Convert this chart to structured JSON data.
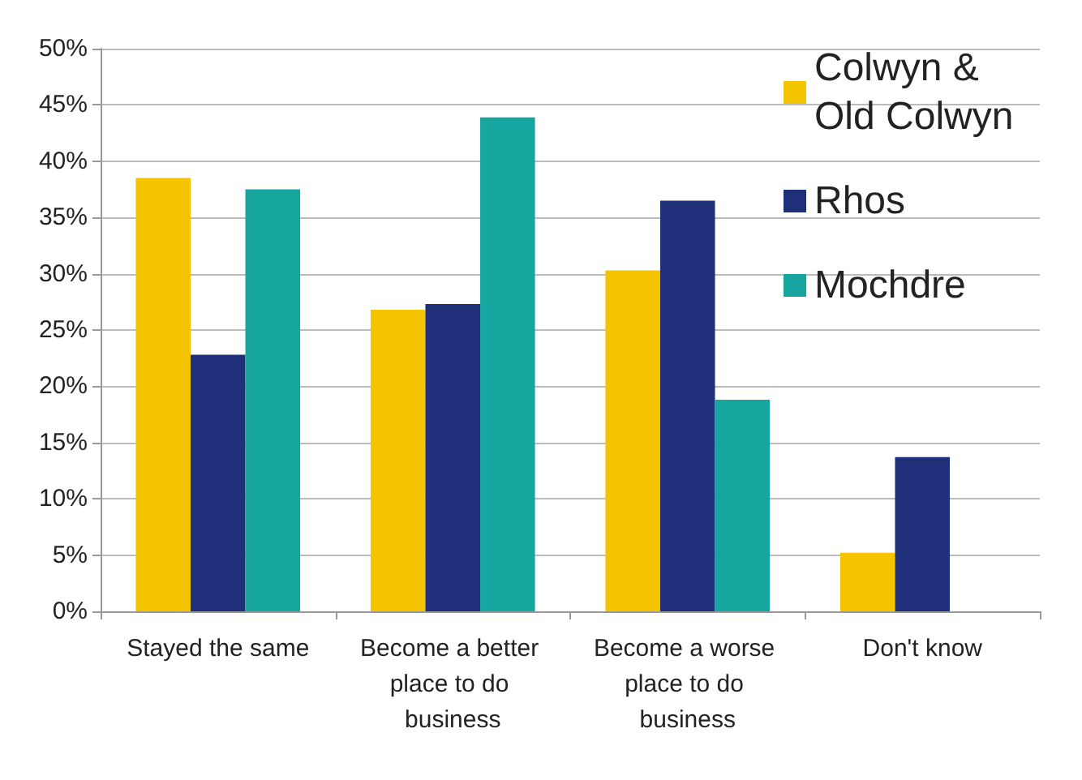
{
  "chart_data": {
    "type": "bar",
    "categories": [
      "Stayed the same",
      "Become a better place to do business",
      "Become a worse place to do business",
      "Don't know"
    ],
    "series": [
      {
        "name": "Colwyn & Old Colwyn",
        "color": "#f5c400",
        "values": [
          38.5,
          26.8,
          30.3,
          5.2
        ]
      },
      {
        "name": "Rhos",
        "color": "#1f2f7a",
        "values": [
          22.8,
          27.3,
          36.5,
          13.7
        ]
      },
      {
        "name": "Mochdre",
        "color": "#17a5a0",
        "values": [
          37.5,
          43.9,
          18.8,
          null
        ]
      }
    ],
    "ylim": [
      0,
      50
    ],
    "yticks": [
      {
        "value": 0,
        "label": "0%"
      },
      {
        "value": 5,
        "label": "5%"
      },
      {
        "value": 10,
        "label": "10%"
      },
      {
        "value": 15,
        "label": "15%"
      },
      {
        "value": 20,
        "label": "20%"
      },
      {
        "value": 25,
        "label": "25%"
      },
      {
        "value": 30,
        "label": "30%"
      },
      {
        "value": 35,
        "label": "35%"
      },
      {
        "value": 40,
        "label": "40%"
      },
      {
        "value": 45,
        "label": "45%"
      },
      {
        "value": 50,
        "label": "50%"
      }
    ],
    "grid": "y",
    "legend": "top right"
  }
}
